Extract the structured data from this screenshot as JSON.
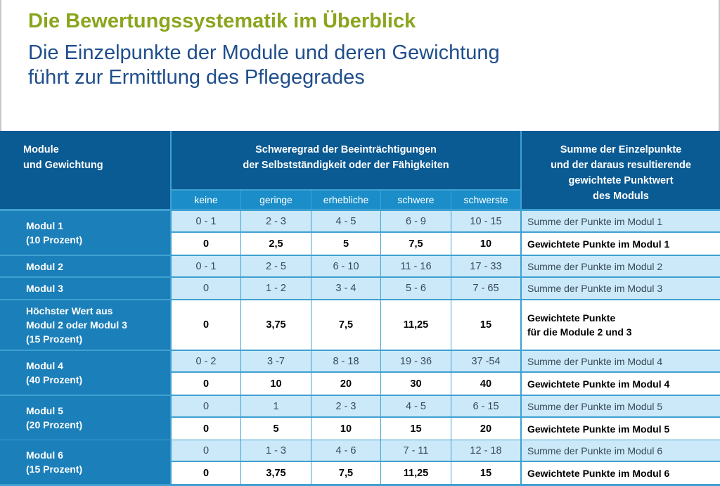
{
  "title": "Die Bewertungssystematik im Überblick",
  "subtitle_line1": "Die Einzelpunkte der Module und deren Gewichtung",
  "subtitle_line2": "führt zur Ermittlung des Pflegegrades",
  "table": {
    "header_module_line1": "Module",
    "header_module_line2": "und Gewichtung",
    "header_severity_line1": "Schweregrad der Beeinträchtigungen",
    "header_severity_line2": "der Selbstständigkeit oder der Fähigkeiten",
    "header_sum_line1": "Summe der Einzelpunkte",
    "header_sum_line2": "und der daraus resultierende",
    "header_sum_line3": "gewichtete Punktwert",
    "header_sum_line4": "des Moduls",
    "severity_levels": [
      "keine",
      "geringe",
      "erhebliche",
      "schwere",
      "schwerste"
    ],
    "groups": [
      {
        "label_line1": "Modul 1",
        "label_line2": "(10 Prozent)",
        "label_line3": "",
        "rows": [
          {
            "values": [
              "0 - 1",
              "2 - 3",
              "4 - 5",
              "6 - 9",
              "10 - 15"
            ],
            "desc_line1": "Summe der Punkte im Modul 1",
            "desc_line2": ""
          },
          {
            "values": [
              "0",
              "2,5",
              "5",
              "7,5",
              "10"
            ],
            "desc_line1": "Gewichtete Punkte im Modul 1",
            "desc_line2": ""
          }
        ]
      },
      {
        "label_line1": "Modul 2",
        "label_line2": "",
        "label_line3": "",
        "rows": [
          {
            "values": [
              "0 - 1",
              "2 - 5",
              "6 - 10",
              "11 - 16",
              "17 - 33"
            ],
            "desc_line1": "Summe der Punkte im Modul 2",
            "desc_line2": ""
          }
        ]
      },
      {
        "label_line1": "Modul 3",
        "label_line2": "",
        "label_line3": "",
        "rows": [
          {
            "values": [
              "0",
              "1 - 2",
              "3 - 4",
              "5 - 6",
              "7 - 65"
            ],
            "desc_line1": "Summe der Punkte im Modul 3",
            "desc_line2": ""
          }
        ]
      },
      {
        "label_line1": "Höchster Wert aus",
        "label_line2": "Modul 2 oder Modul 3",
        "label_line3": "(15 Prozent)",
        "rows": [
          {
            "values": [
              "0",
              "3,75",
              "7,5",
              "11,25",
              "15"
            ],
            "desc_line1": "Gewichtete Punkte",
            "desc_line2": "für die Module 2 und 3"
          }
        ]
      },
      {
        "label_line1": "Modul 4",
        "label_line2": "(40 Prozent)",
        "label_line3": "",
        "rows": [
          {
            "values": [
              "0 - 2",
              "3 -7",
              "8 - 18",
              "19 - 36",
              "37 -54"
            ],
            "desc_line1": "Summe der Punkte im Modul 4",
            "desc_line2": ""
          },
          {
            "values": [
              "0",
              "10",
              "20",
              "30",
              "40"
            ],
            "desc_line1": "Gewichtete Punkte im Modul 4",
            "desc_line2": ""
          }
        ]
      },
      {
        "label_line1": "Modul 5",
        "label_line2": "(20 Prozent)",
        "label_line3": "",
        "rows": [
          {
            "values": [
              "0",
              "1",
              "2 - 3",
              "4 - 5",
              "6 - 15"
            ],
            "desc_line1": "Summe der Punkte im Modul 5",
            "desc_line2": ""
          },
          {
            "values": [
              "0",
              "5",
              "10",
              "15",
              "20"
            ],
            "desc_line1": "Gewichtete Punkte im Modul 5",
            "desc_line2": ""
          }
        ]
      },
      {
        "label_line1": "Modul 6",
        "label_line2": "(15 Prozent)",
        "label_line3": "",
        "rows": [
          {
            "values": [
              "0",
              "1 - 3",
              "4 - 6",
              "7 - 11",
              "12 - 18"
            ],
            "desc_line1": "Summe der Punkte im Modul 6",
            "desc_line2": ""
          },
          {
            "values": [
              "0",
              "3,75",
              "7,5",
              "11,25",
              "15"
            ],
            "desc_line1": "Gewichtete Punkte im Modul 6",
            "desc_line2": ""
          }
        ]
      }
    ]
  }
}
